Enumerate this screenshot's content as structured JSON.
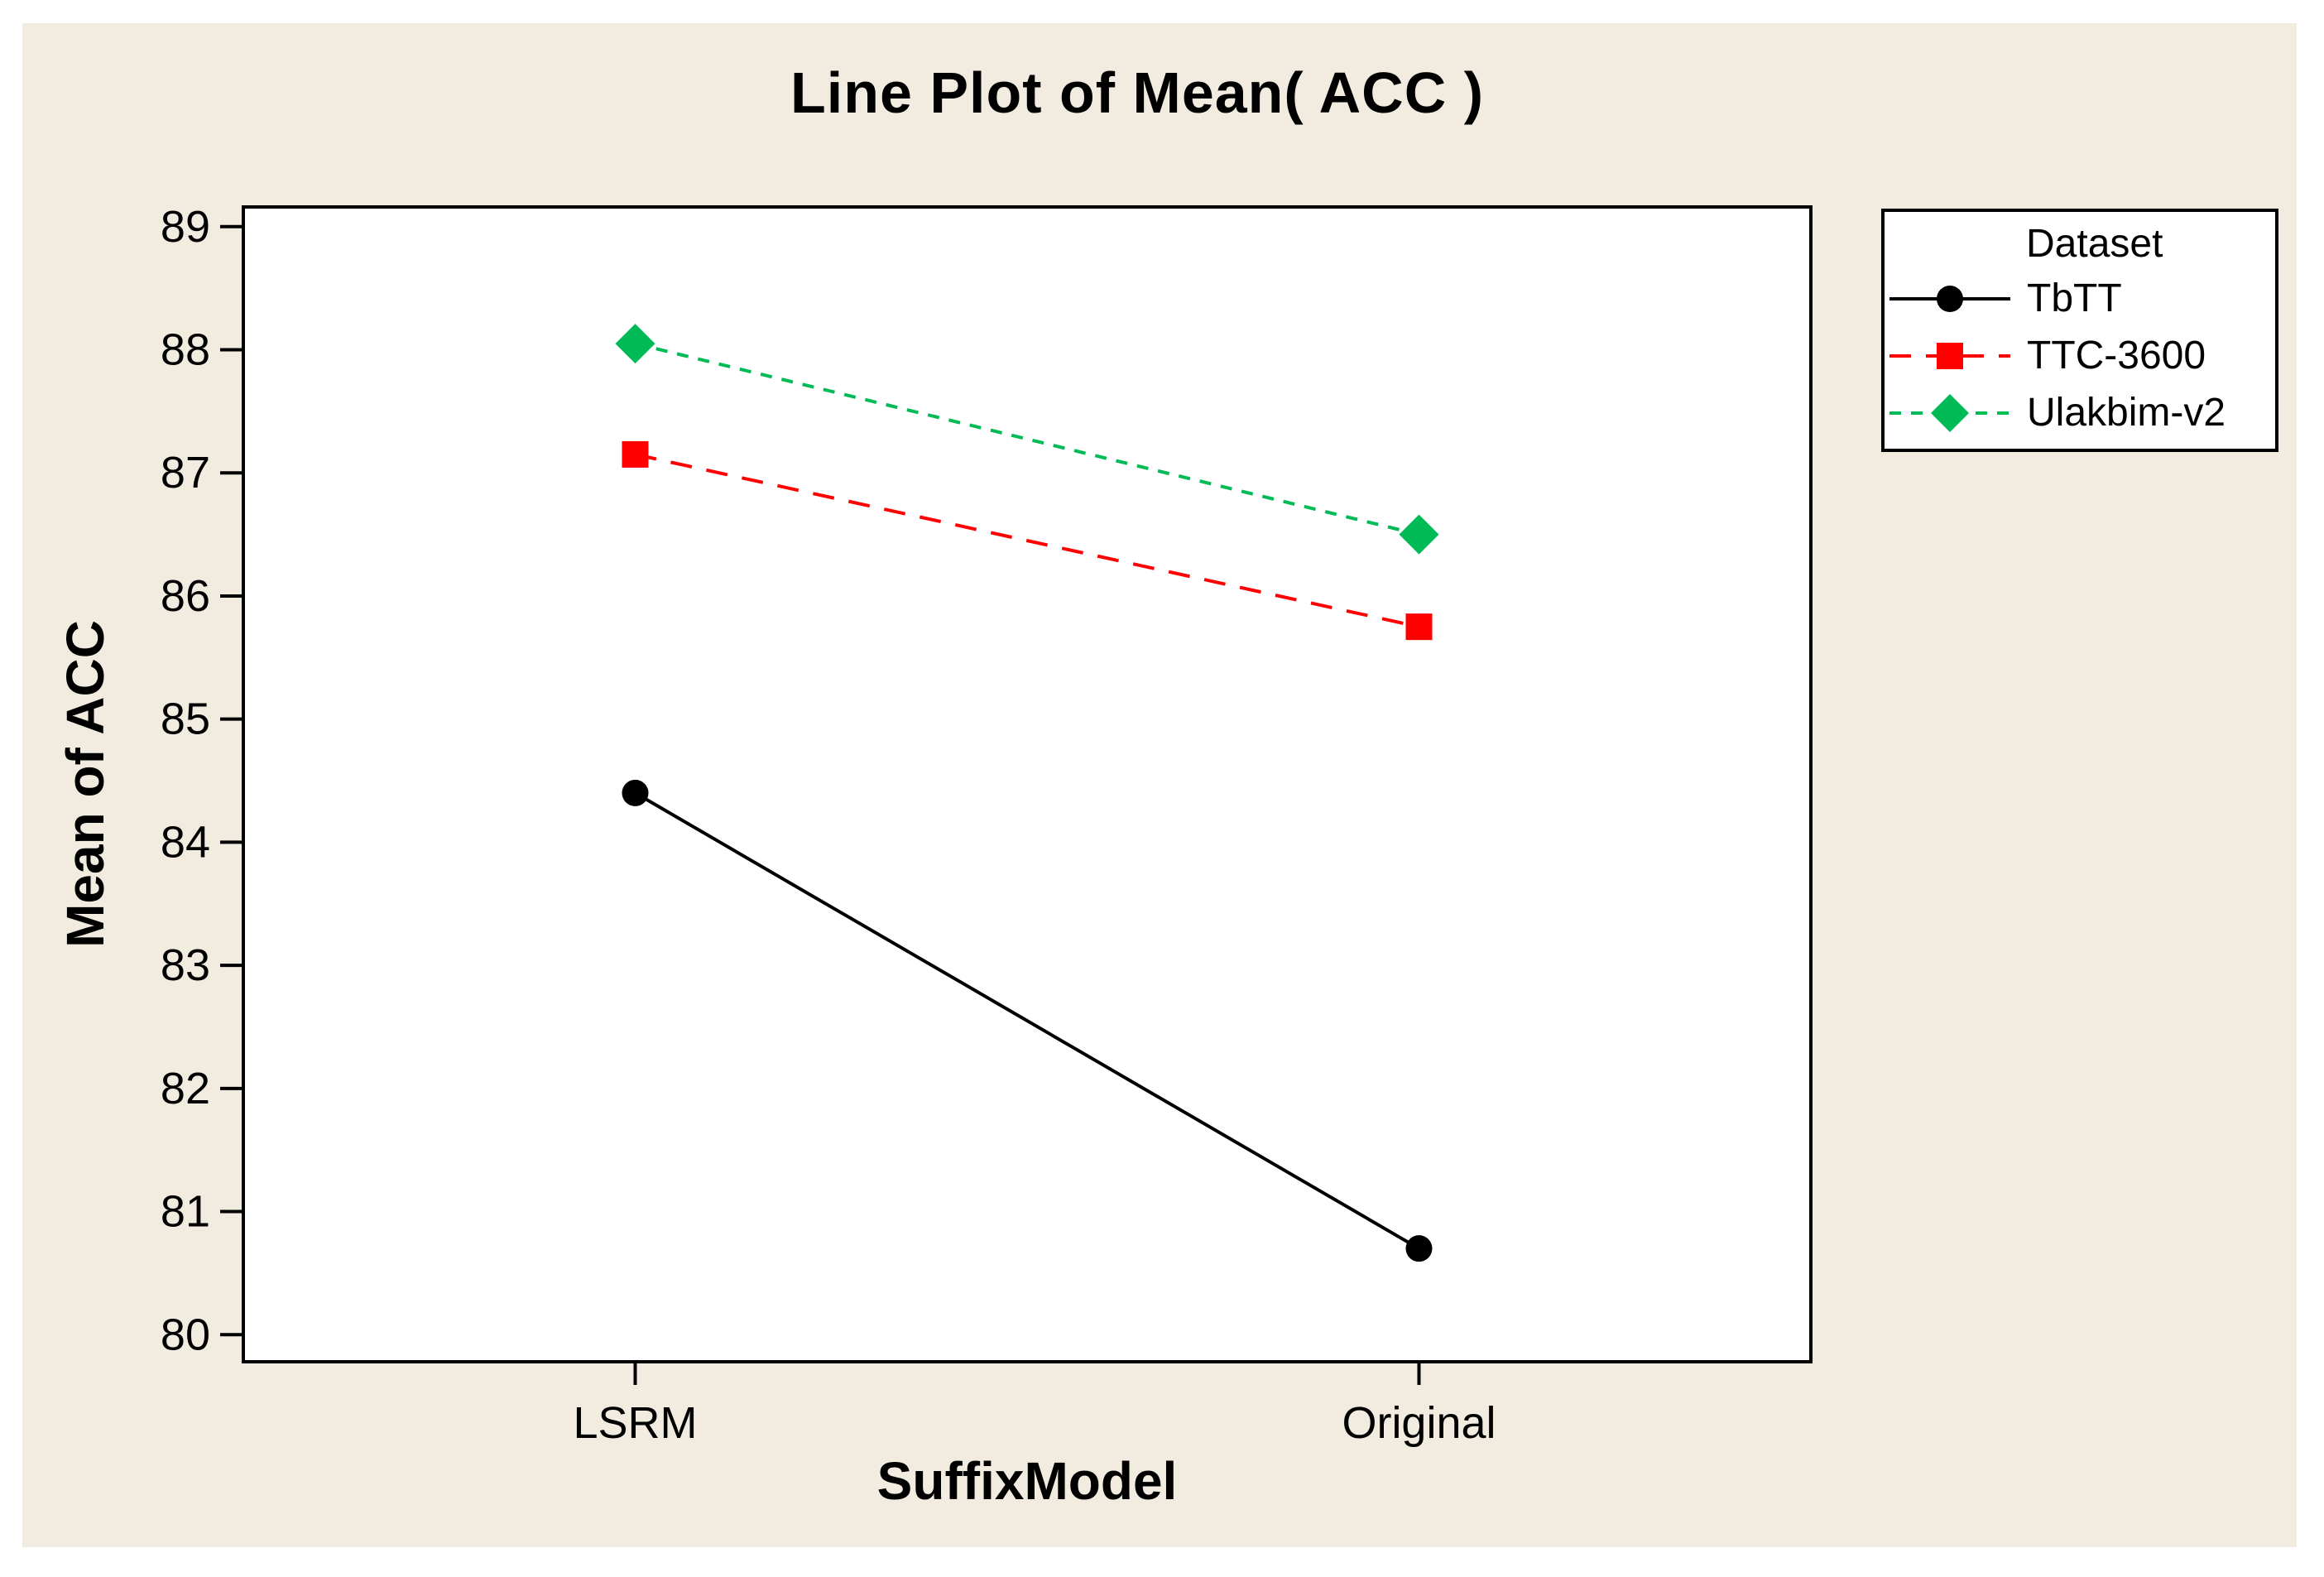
{
  "page": {
    "background": "#FFFFFF",
    "panel_background": "#F2ECE0"
  },
  "chart_data": {
    "type": "line",
    "title": "Line Plot of Mean( ACC )",
    "xlabel": "SuffixModel",
    "ylabel": "Mean of ACC",
    "categories": [
      "LSRM",
      "Original"
    ],
    "series": [
      {
        "name": "TbTT",
        "values": [
          84.4,
          80.7
        ],
        "color": "#000000",
        "line_style": "solid",
        "marker": "circle"
      },
      {
        "name": "TTC-3600",
        "values": [
          87.15,
          85.75
        ],
        "color": "#FF0000",
        "line_style": "dashed",
        "marker": "square"
      },
      {
        "name": "Ulakbim-v2",
        "values": [
          88.05,
          86.5
        ],
        "color": "#00BA55",
        "line_style": "short-dashed",
        "marker": "diamond"
      }
    ],
    "y_ticks": [
      80,
      81,
      82,
      83,
      84,
      85,
      86,
      87,
      88,
      89
    ],
    "ylim": [
      79.78,
      89.16
    ],
    "x_positions": [
      0.25,
      0.75
    ],
    "grid": false,
    "legend": {
      "title": "Dataset"
    },
    "legend_position": "top-right",
    "plot_background": "#FFFFFF",
    "axis_color": "#000000"
  }
}
